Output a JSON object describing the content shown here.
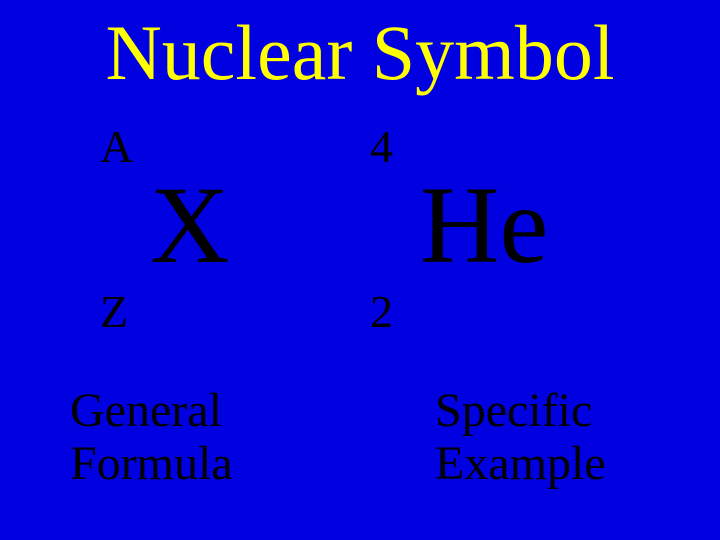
{
  "slide": {
    "title": "Nuclear Symbol",
    "background_color": "#0000e0",
    "title_color": "#ffff00",
    "text_color": "#000000",
    "title_fontsize": 78,
    "superscript_fontsize": 46,
    "subscript_fontsize": 46,
    "element_fontsize": 110,
    "caption_fontsize": 48,
    "font_family": "Times New Roman",
    "left": {
      "superscript": "A",
      "element": "X",
      "subscript": "Z",
      "caption_line1": "General",
      "caption_line2": "Formula"
    },
    "right": {
      "superscript": "4",
      "element": "He",
      "subscript": "2",
      "caption_line1": "Specific",
      "caption_line2": "Example"
    }
  }
}
